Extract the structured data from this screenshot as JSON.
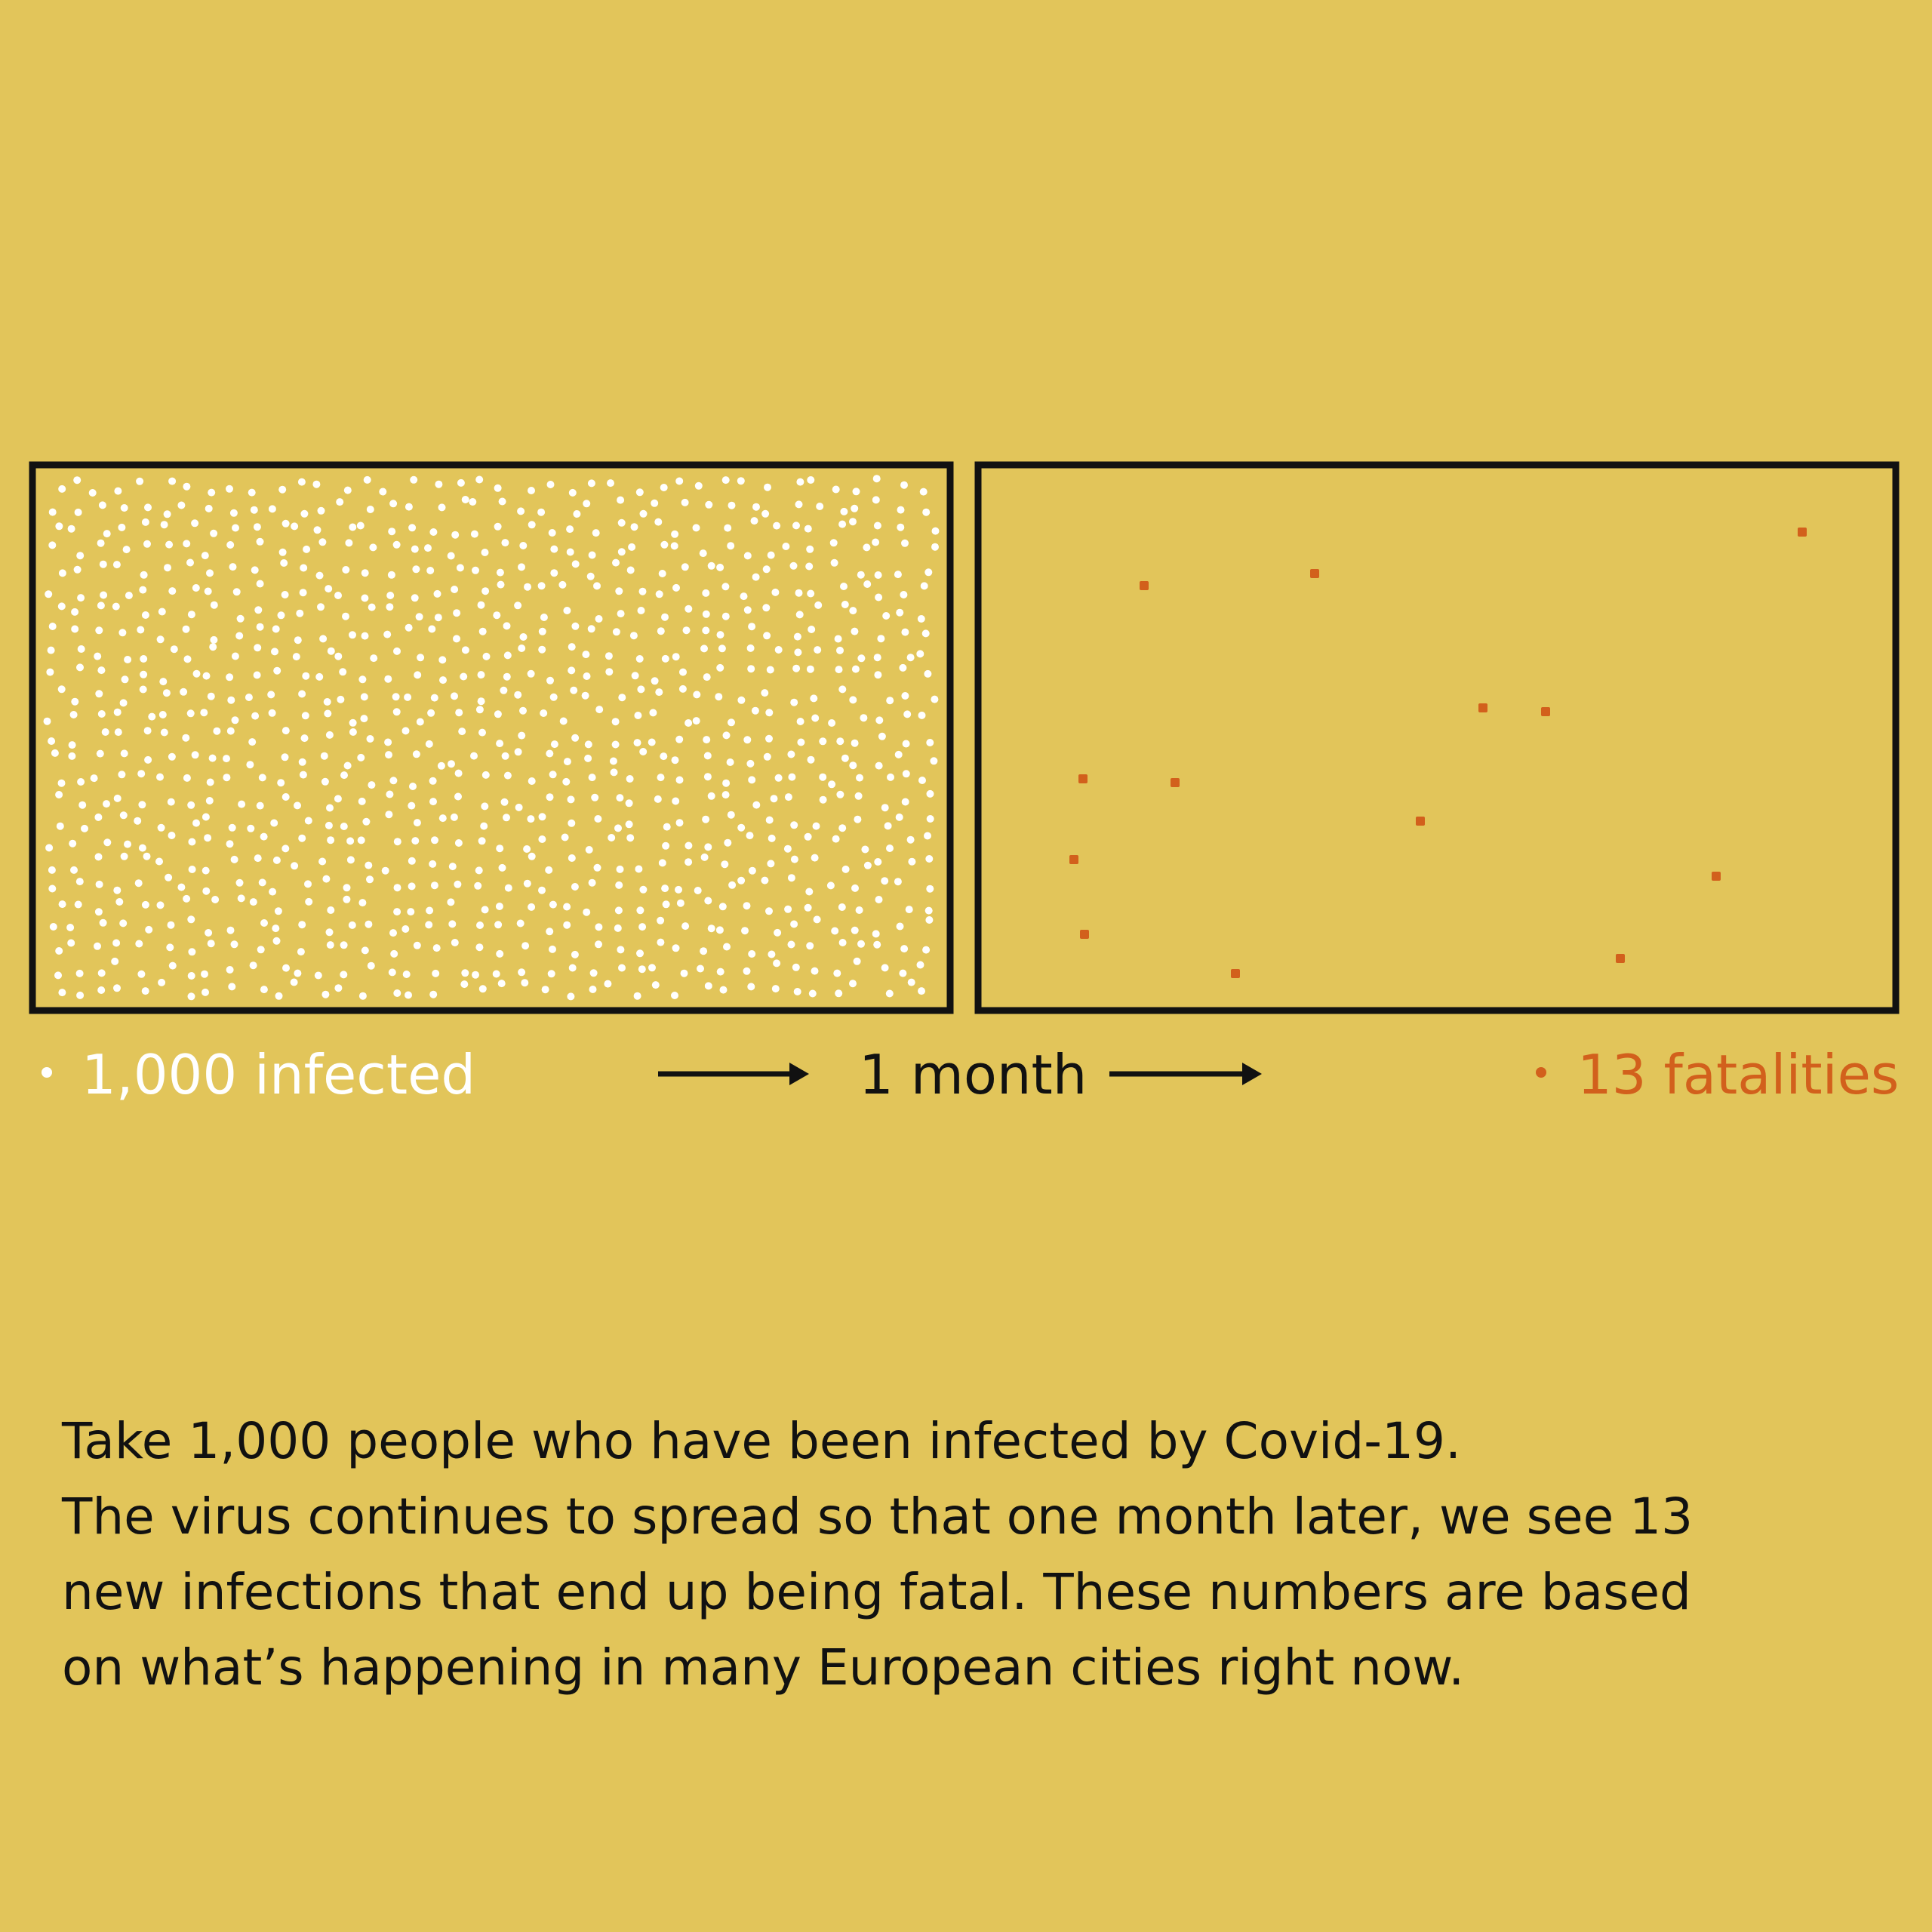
{
  "colors": {
    "background": "#e2c55a",
    "infected_dot": "#ffffff",
    "fatal_dot": "#d2601c",
    "ink": "#111111"
  },
  "left_panel": {
    "infected_count": 1000,
    "dot_color_ref": "infected_dot"
  },
  "right_panel": {
    "fatality_count": 13,
    "dot_color_ref": "fatal_dot"
  },
  "legend": {
    "infected_label": "1,000 infected",
    "interval_label": "1 month",
    "fatalities_label": "13 fatalities",
    "arrow_icon": "right-arrow-icon",
    "bullet_icon": "dot-bullet-icon"
  },
  "caption": {
    "lines": [
      "Take 1,000 people who have been infected by Covid-19.",
      "The virus continues to spread so that one month later, we see 13",
      "new infections that end up being fatal. These numbers are based",
      "on what’s happening in many European cities right now."
    ]
  }
}
